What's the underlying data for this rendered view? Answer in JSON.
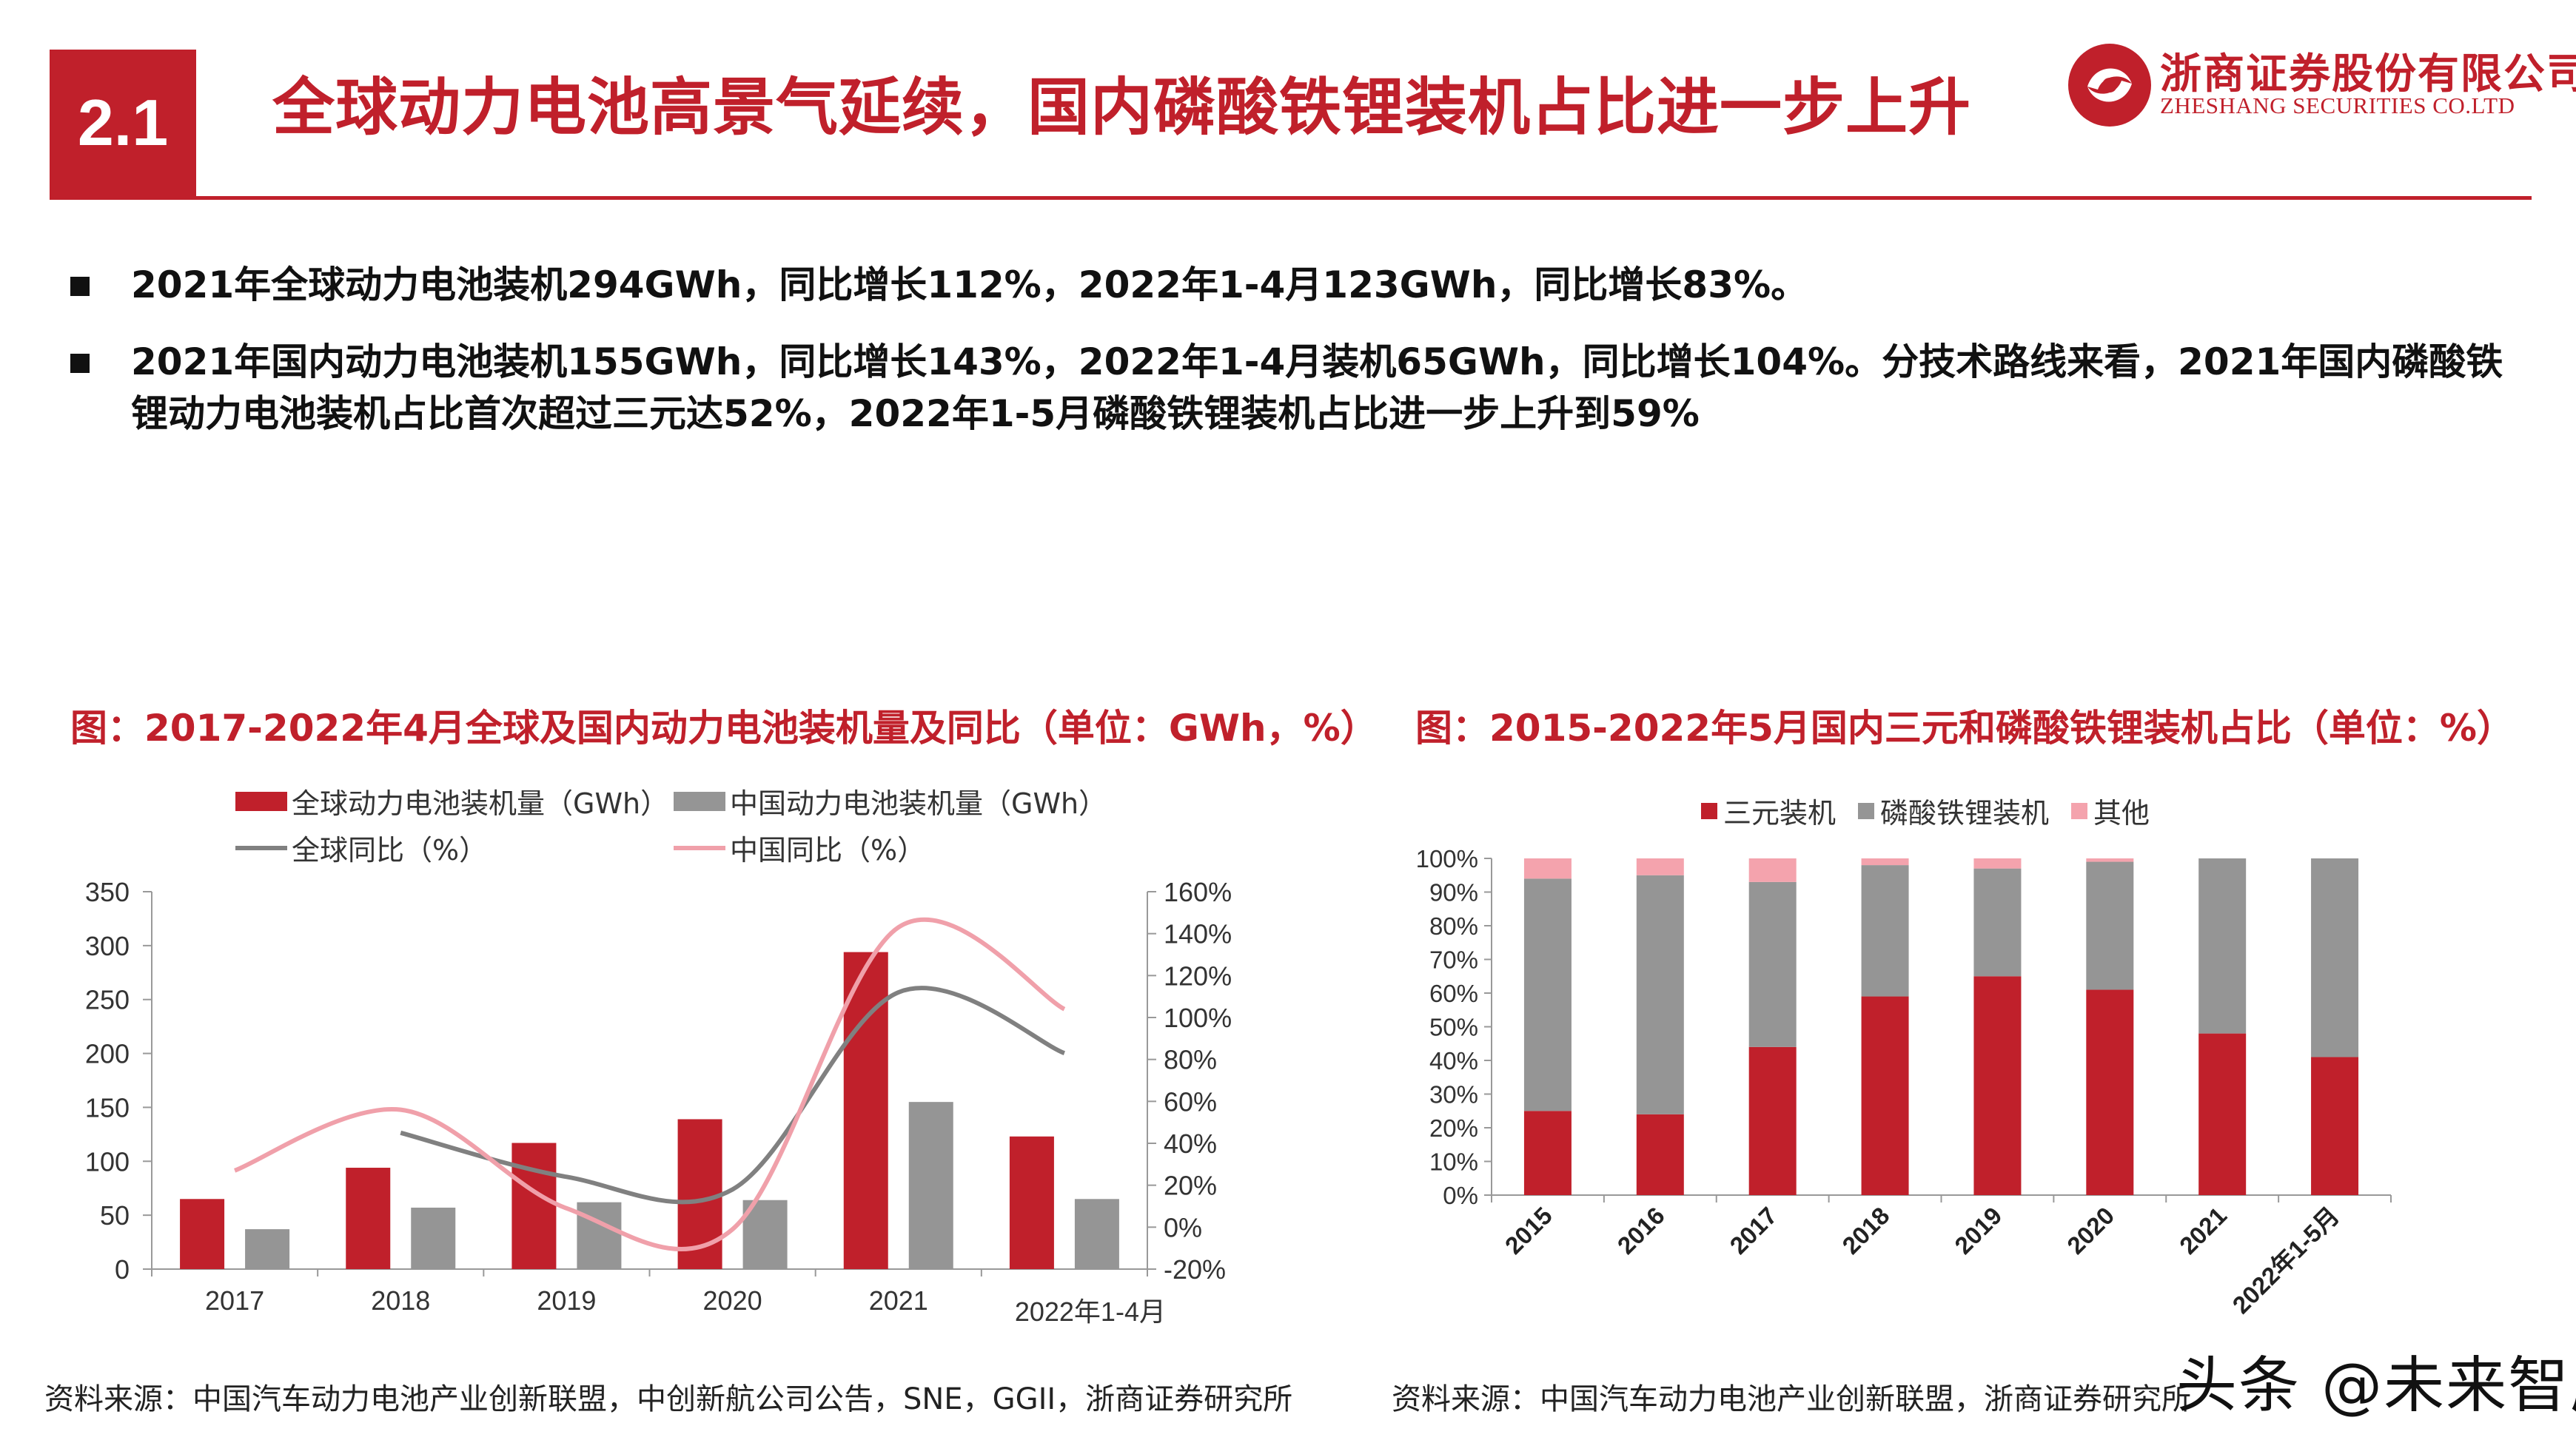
{
  "header": {
    "section_number": "2.1",
    "title": "全球动力电池高景气延续，国内磷酸铁锂装机占比进一步上升",
    "logo_cn": "浙商证券股份有限公司",
    "logo_en": "ZHESHANG SECURITIES CO.LTD",
    "logo_icon": "zheshang-logo-icon",
    "accent_color": "#c0202b"
  },
  "bullets": [
    "2021年全球动力电池装机294GWh，同比增长112%，2022年1-4月123GWh，同比增长83%。",
    "2021年国内动力电池装机155GWh，同比增长143%，2022年1-4月装机65GWh，同比增长104%。分技术路线来看，2021年国内磷酸铁锂动力电池装机占比首次超过三元达52%，2022年1-5月磷酸铁锂装机占比进一步上升到59%"
  ],
  "chart_data": [
    {
      "type": "bar",
      "title": "图：2017-2022年4月全球及国内动力电池装机量及同比（单位：GWh，%）",
      "categories": [
        "2017",
        "2018",
        "2019",
        "2020",
        "2021",
        "2022年1-4月"
      ],
      "series": [
        {
          "name": "全球动力电池装机量（GWh）",
          "kind": "bar",
          "axis": "left",
          "color": "#c0202b",
          "values": [
            65,
            94,
            117,
            139,
            294,
            123
          ]
        },
        {
          "name": "中国动力电池装机量（GWh）",
          "kind": "bar",
          "axis": "left",
          "color": "#959595",
          "values": [
            37,
            57,
            62,
            64,
            155,
            65
          ]
        },
        {
          "name": "全球同比（%）",
          "kind": "line",
          "axis": "right",
          "color": "#808080",
          "values": [
            null,
            45,
            24,
            18,
            112,
            83
          ]
        },
        {
          "name": "中国同比（%）",
          "kind": "line",
          "axis": "right",
          "color": "#f0a0aa",
          "values": [
            27,
            56,
            9,
            -1,
            143,
            104
          ]
        }
      ],
      "ylim": [
        0,
        350
      ],
      "yticks": [
        0,
        50,
        100,
        150,
        200,
        250,
        300,
        350
      ],
      "y2lim": [
        -20,
        160
      ],
      "y2ticks": [
        -20,
        0,
        20,
        40,
        60,
        80,
        100,
        120,
        140,
        160
      ],
      "y2tick_suffix": "%",
      "legend_position": "top",
      "grid": false
    },
    {
      "type": "bar",
      "stacked": true,
      "title": "图：2015-2022年5月国内三元和磷酸铁锂装机占比（单位：%）",
      "categories": [
        "2015",
        "2016",
        "2017",
        "2018",
        "2019",
        "2020",
        "2021",
        "2022年1-5月"
      ],
      "series": [
        {
          "name": "三元装机",
          "color": "#c0202b",
          "values": [
            25,
            24,
            44,
            59,
            65,
            61,
            48,
            41
          ]
        },
        {
          "name": "磷酸铁锂装机",
          "color": "#959595",
          "values": [
            69,
            71,
            49,
            39,
            32,
            38,
            52,
            59
          ]
        },
        {
          "name": "其他",
          "color": "#f4a3ad",
          "values": [
            6,
            5,
            7,
            2,
            3,
            1,
            0,
            0
          ]
        }
      ],
      "ylim": [
        0,
        100
      ],
      "yticks": [
        0,
        10,
        20,
        30,
        40,
        50,
        60,
        70,
        80,
        90,
        100
      ],
      "ytick_suffix": "%",
      "legend_position": "top",
      "grid": false
    }
  ],
  "sources": {
    "left": "资料来源：中国汽车动力电池产业创新联盟，中创新航公司公告，SNE，GGII，浙商证券研究所",
    "right": "资料来源：中国汽车动力电池产业创新联盟，浙商证券研究所"
  },
  "watermark": "头条 @未来智库"
}
